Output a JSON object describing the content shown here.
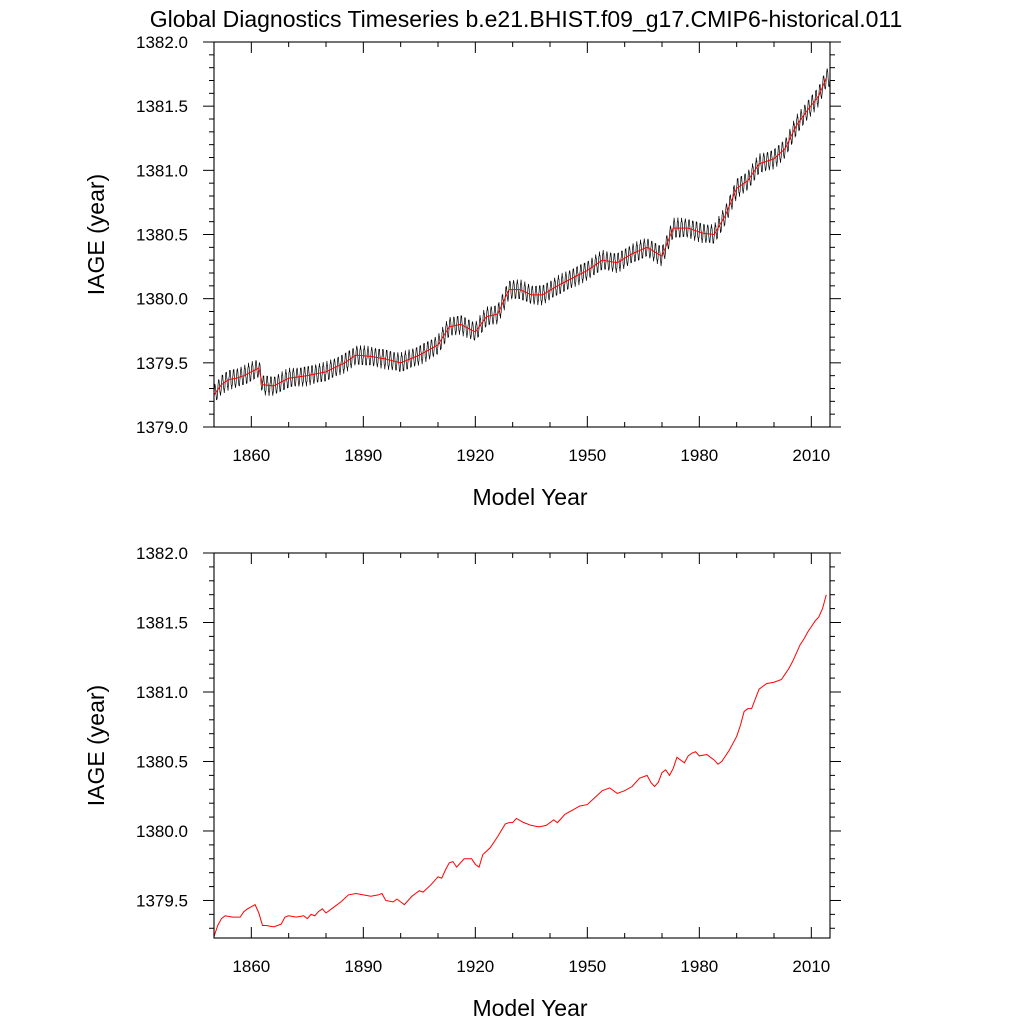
{
  "title": "Global Diagnostics Timeseries b.e21.BHIST.f09_g17.CMIP6-historical.011",
  "colors": {
    "monthly": "#000000",
    "annual": "#ff0000",
    "frame": "#000000"
  },
  "chart_data": [
    {
      "type": "line",
      "xlabel": "Model Year",
      "ylabel": "IAGE (year)",
      "xlim": [
        1850,
        2015
      ],
      "ylim": [
        1379.0,
        1382.0
      ],
      "xticks": [
        1860,
        1890,
        1920,
        1950,
        1980,
        2010
      ],
      "xtick_labels": [
        "1860",
        "1890",
        "1920",
        "1950",
        "1980",
        "2010"
      ],
      "yticks": [
        1379.0,
        1379.5,
        1380.0,
        1380.5,
        1381.0,
        1381.5,
        1382.0
      ],
      "ytick_labels": [
        "1379.0",
        "1379.5",
        "1380.0",
        "1380.5",
        "1381.0",
        "1381.5",
        "1382.0"
      ],
      "monthly_amplitude": 0.07,
      "series": [
        {
          "color": "#000000",
          "kind": "monthly",
          "x": [
            1850,
            1852,
            1854,
            1856,
            1858,
            1860,
            1862,
            1863,
            1866,
            1870,
            1875,
            1880,
            1885,
            1888,
            1892,
            1896,
            1900,
            1905,
            1910,
            1913,
            1916,
            1920,
            1923,
            1926,
            1929,
            1932,
            1935,
            1938,
            1942,
            1946,
            1950,
            1954,
            1958,
            1962,
            1966,
            1970,
            1973,
            1977,
            1981,
            1984,
            1987,
            1990,
            1993,
            1996,
            2000,
            2003,
            2006,
            2009,
            2012,
            2014
          ],
          "y": [
            1379.25,
            1379.33,
            1379.37,
            1379.38,
            1379.4,
            1379.43,
            1379.46,
            1379.33,
            1379.32,
            1379.38,
            1379.4,
            1379.43,
            1379.5,
            1379.56,
            1379.55,
            1379.53,
            1379.5,
            1379.56,
            1379.64,
            1379.78,
            1379.8,
            1379.74,
            1379.86,
            1379.88,
            1380.07,
            1380.07,
            1380.03,
            1380.03,
            1380.1,
            1380.16,
            1380.22,
            1380.3,
            1380.28,
            1380.35,
            1380.4,
            1380.33,
            1380.55,
            1380.55,
            1380.51,
            1380.5,
            1380.65,
            1380.86,
            1380.92,
            1381.05,
            1381.09,
            1381.17,
            1381.35,
            1381.47,
            1381.58,
            1381.72
          ]
        },
        {
          "color": "#ff0000",
          "kind": "annual",
          "x": [
            1850,
            1852,
            1854,
            1856,
            1858,
            1860,
            1862,
            1863,
            1866,
            1870,
            1875,
            1880,
            1885,
            1888,
            1892,
            1896,
            1900,
            1905,
            1910,
            1913,
            1916,
            1920,
            1923,
            1926,
            1929,
            1932,
            1935,
            1938,
            1942,
            1946,
            1950,
            1954,
            1958,
            1962,
            1966,
            1970,
            1973,
            1977,
            1981,
            1984,
            1987,
            1990,
            1993,
            1996,
            2000,
            2003,
            2006,
            2009,
            2012,
            2014
          ],
          "y": [
            1379.25,
            1379.33,
            1379.37,
            1379.38,
            1379.4,
            1379.43,
            1379.46,
            1379.33,
            1379.32,
            1379.38,
            1379.4,
            1379.43,
            1379.5,
            1379.56,
            1379.55,
            1379.53,
            1379.5,
            1379.56,
            1379.64,
            1379.78,
            1379.8,
            1379.74,
            1379.86,
            1379.88,
            1380.07,
            1380.07,
            1380.03,
            1380.03,
            1380.1,
            1380.16,
            1380.22,
            1380.3,
            1380.28,
            1380.35,
            1380.4,
            1380.33,
            1380.55,
            1380.55,
            1380.51,
            1380.5,
            1380.65,
            1380.86,
            1380.92,
            1381.05,
            1381.09,
            1381.17,
            1381.35,
            1381.47,
            1381.58,
            1381.72
          ]
        }
      ]
    },
    {
      "type": "line",
      "xlabel": "Model Year",
      "ylabel": "IAGE (year)",
      "xlim": [
        1850,
        2015
      ],
      "ylim": [
        1379.23,
        1382.0
      ],
      "xticks": [
        1860,
        1890,
        1920,
        1950,
        1980,
        2010
      ],
      "xtick_labels": [
        "1860",
        "1890",
        "1920",
        "1950",
        "1980",
        "2010"
      ],
      "yticks": [
        1379.5,
        1380.0,
        1380.5,
        1381.0,
        1381.5,
        1382.0
      ],
      "ytick_labels": [
        "1379.5",
        "1380.0",
        "1380.5",
        "1381.0",
        "1381.5",
        "1382.0"
      ],
      "series": [
        {
          "color": "#ff0000",
          "kind": "annual",
          "x": [
            1850,
            1851,
            1852,
            1853,
            1855,
            1857,
            1858,
            1859,
            1861,
            1862,
            1863,
            1864,
            1866,
            1867,
            1868,
            1869,
            1870,
            1872,
            1874,
            1875,
            1876,
            1877,
            1878,
            1879,
            1880,
            1882,
            1884,
            1886,
            1888,
            1890,
            1892,
            1894,
            1895,
            1896,
            1898,
            1899,
            1900,
            1901,
            1903,
            1904,
            1905,
            1906,
            1908,
            1910,
            1911,
            1912,
            1913,
            1914,
            1915,
            1917,
            1918,
            1919,
            1920,
            1921,
            1922,
            1924,
            1926,
            1928,
            1929,
            1930,
            1931,
            1933,
            1935,
            1937,
            1939,
            1941,
            1942,
            1944,
            1946,
            1948,
            1950,
            1952,
            1954,
            1956,
            1958,
            1960,
            1962,
            1964,
            1966,
            1967,
            1968,
            1969,
            1970,
            1971,
            1972,
            1973,
            1974,
            1976,
            1977,
            1978,
            1979,
            1980,
            1982,
            1983,
            1984,
            1985,
            1986,
            1988,
            1990,
            1991,
            1992,
            1993,
            1994,
            1996,
            1998,
            2000,
            2002,
            2003,
            2004,
            2005,
            2006,
            2007,
            2008,
            2009,
            2011,
            2012,
            2013,
            2014
          ],
          "y": [
            1379.24,
            1379.32,
            1379.37,
            1379.39,
            1379.38,
            1379.38,
            1379.42,
            1379.44,
            1379.47,
            1379.41,
            1379.32,
            1379.32,
            1379.31,
            1379.32,
            1379.33,
            1379.38,
            1379.39,
            1379.38,
            1379.39,
            1379.37,
            1379.4,
            1379.39,
            1379.42,
            1379.44,
            1379.41,
            1379.45,
            1379.49,
            1379.54,
            1379.55,
            1379.54,
            1379.53,
            1379.54,
            1379.55,
            1379.5,
            1379.49,
            1379.51,
            1379.49,
            1379.47,
            1379.53,
            1379.55,
            1379.57,
            1379.56,
            1379.61,
            1379.67,
            1379.66,
            1379.72,
            1379.77,
            1379.78,
            1379.74,
            1379.8,
            1379.8,
            1379.8,
            1379.76,
            1379.74,
            1379.83,
            1379.88,
            1379.96,
            1380.05,
            1380.06,
            1380.06,
            1380.09,
            1380.06,
            1380.04,
            1380.03,
            1380.04,
            1380.08,
            1380.06,
            1380.12,
            1380.15,
            1380.18,
            1380.19,
            1380.24,
            1380.29,
            1380.31,
            1380.27,
            1380.29,
            1380.32,
            1380.38,
            1380.4,
            1380.35,
            1380.32,
            1380.35,
            1380.42,
            1380.44,
            1380.4,
            1380.45,
            1380.53,
            1380.49,
            1380.54,
            1380.56,
            1380.57,
            1380.54,
            1380.55,
            1380.53,
            1380.51,
            1380.48,
            1380.5,
            1380.58,
            1380.68,
            1380.76,
            1380.86,
            1380.88,
            1380.88,
            1381.02,
            1381.06,
            1381.07,
            1381.09,
            1381.13,
            1381.17,
            1381.22,
            1381.28,
            1381.34,
            1381.38,
            1381.43,
            1381.51,
            1381.54,
            1381.6,
            1381.7
          ]
        }
      ]
    }
  ]
}
